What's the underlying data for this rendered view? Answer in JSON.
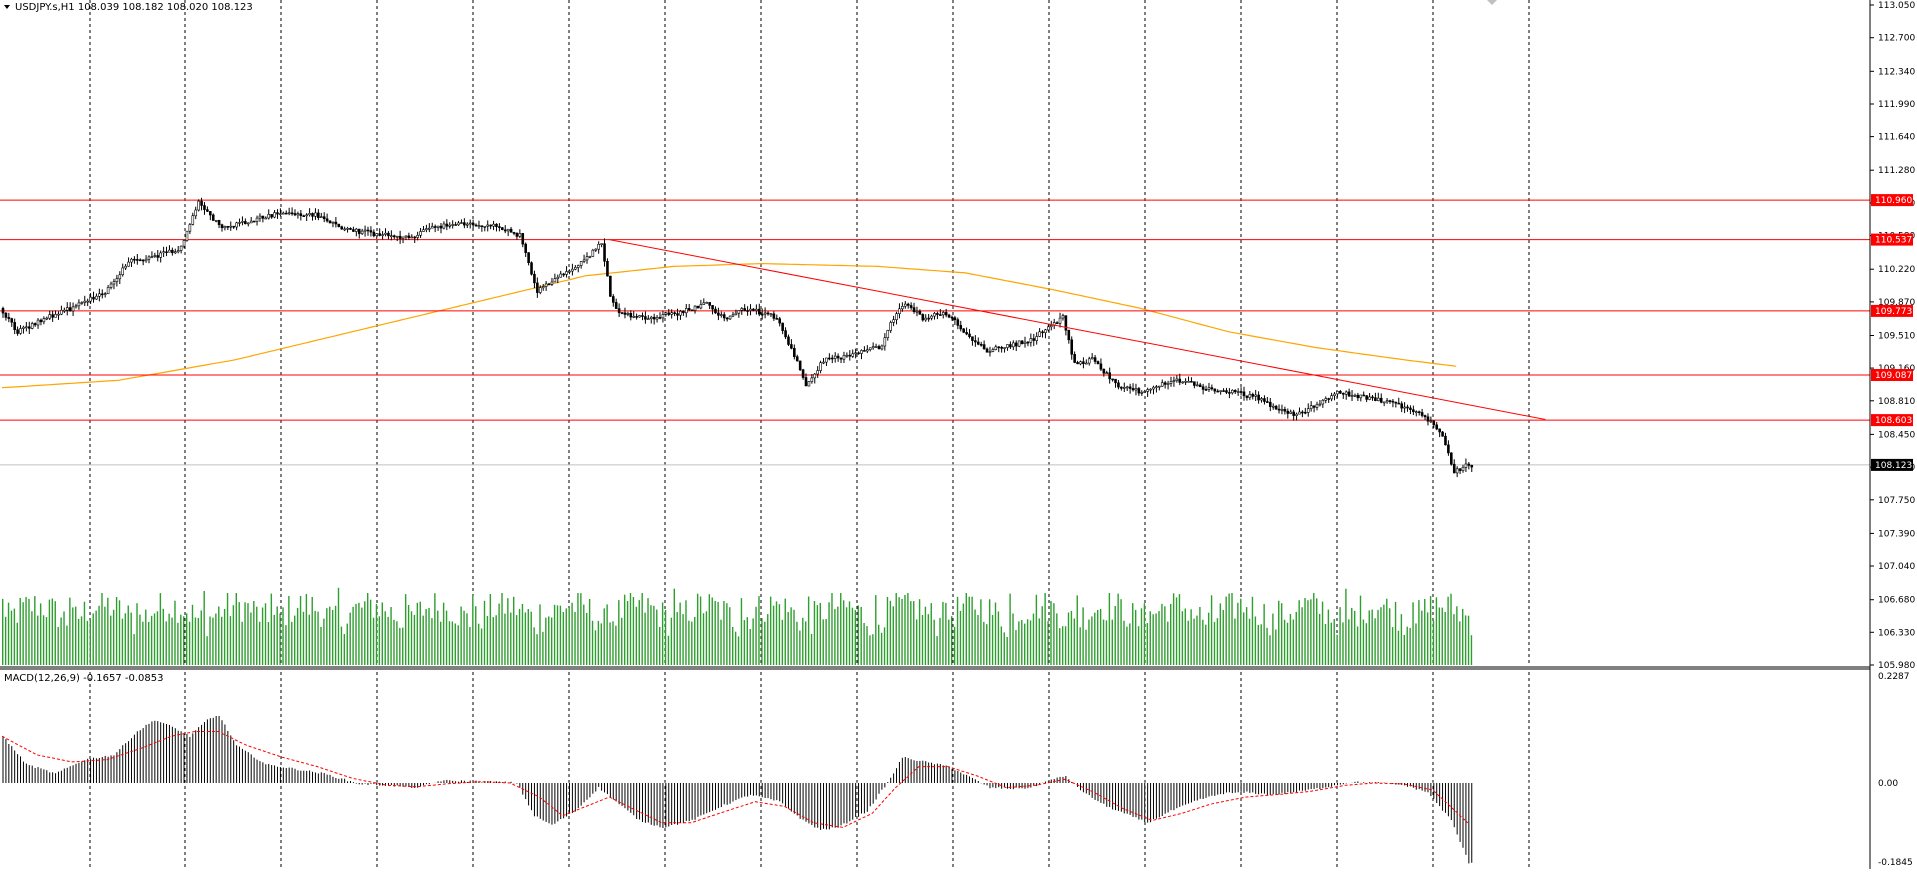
{
  "header": {
    "symbol_line": "USDJPY.s,H1  108.039 108.182 108.020 108.123",
    "macd_label": "MACD(12,26,9) -0.1657 -0.0853"
  },
  "colors": {
    "background": "#ffffff",
    "candle": "#000000",
    "volume": "#2e9e2e",
    "macd_hist": "#000000",
    "macd_signal": "#ff0000",
    "ma": "#ffa500",
    "sr_line": "#ff0000",
    "trendline": "#ff0000",
    "current_price_line": "#c0c0c0",
    "price_badge_bg": "#ff0000",
    "current_badge_bg": "#000000",
    "grid": "#000000",
    "separator": "#808080"
  },
  "chart_data": {
    "type": "candlestick",
    "symbol": "USDJPY.s",
    "timeframe": "H1",
    "ohlc_last": {
      "open": 108.039,
      "high": 108.182,
      "low": 108.02,
      "close": 108.123
    },
    "grid": true,
    "price_axis": {
      "ylim": [
        105.98,
        113.05
      ],
      "ticks": [
        "113.050",
        "112.700",
        "112.340",
        "111.990",
        "111.640",
        "111.280",
        "110.930",
        "110.580",
        "110.220",
        "109.870",
        "109.510",
        "109.160",
        "108.810",
        "108.450",
        "108.100",
        "107.750",
        "107.390",
        "107.040",
        "106.680",
        "106.330",
        "105.980"
      ]
    },
    "horizontal_levels": [
      {
        "price": 110.96,
        "label": "110.960"
      },
      {
        "price": 110.537,
        "label": "110.537"
      },
      {
        "price": 109.773,
        "label": "109.773"
      },
      {
        "price": 109.087,
        "label": "109.087"
      },
      {
        "price": 108.603,
        "label": "108.603"
      }
    ],
    "current_price": {
      "price": 108.123,
      "label": "108.123"
    },
    "trendline": {
      "from_bar": 208,
      "from_price": 110.537,
      "to_bar": 508,
      "to_price": 108.65
    },
    "price_anchors": [
      [
        0,
        109.8
      ],
      [
        6,
        109.55
      ],
      [
        16,
        109.7
      ],
      [
        26,
        109.82
      ],
      [
        36,
        109.98
      ],
      [
        44,
        110.3
      ],
      [
        52,
        110.35
      ],
      [
        62,
        110.45
      ],
      [
        68,
        110.95
      ],
      [
        76,
        110.65
      ],
      [
        86,
        110.75
      ],
      [
        96,
        110.82
      ],
      [
        108,
        110.8
      ],
      [
        118,
        110.65
      ],
      [
        128,
        110.6
      ],
      [
        140,
        110.55
      ],
      [
        148,
        110.68
      ],
      [
        160,
        110.7
      ],
      [
        170,
        110.68
      ],
      [
        178,
        110.58
      ],
      [
        184,
        109.98
      ],
      [
        192,
        110.15
      ],
      [
        200,
        110.3
      ],
      [
        206,
        110.5
      ],
      [
        209,
        109.95
      ],
      [
        212,
        109.75
      ],
      [
        222,
        109.7
      ],
      [
        232,
        109.75
      ],
      [
        242,
        109.85
      ],
      [
        248,
        109.7
      ],
      [
        256,
        109.8
      ],
      [
        266,
        109.7
      ],
      [
        272,
        109.3
      ],
      [
        276,
        108.95
      ],
      [
        282,
        109.25
      ],
      [
        292,
        109.3
      ],
      [
        302,
        109.4
      ],
      [
        306,
        109.7
      ],
      [
        310,
        109.85
      ],
      [
        316,
        109.7
      ],
      [
        324,
        109.75
      ],
      [
        332,
        109.5
      ],
      [
        338,
        109.35
      ],
      [
        346,
        109.4
      ],
      [
        354,
        109.48
      ],
      [
        360,
        109.62
      ],
      [
        364,
        109.7
      ],
      [
        368,
        109.2
      ],
      [
        374,
        109.25
      ],
      [
        384,
        108.95
      ],
      [
        392,
        108.9
      ],
      [
        402,
        109.05
      ],
      [
        412,
        108.95
      ],
      [
        422,
        108.9
      ],
      [
        430,
        108.85
      ],
      [
        436,
        108.75
      ],
      [
        444,
        108.65
      ],
      [
        452,
        108.8
      ],
      [
        458,
        108.9
      ],
      [
        466,
        108.85
      ],
      [
        476,
        108.8
      ],
      [
        484,
        108.7
      ],
      [
        490,
        108.6
      ],
      [
        494,
        108.45
      ],
      [
        498,
        108.05
      ],
      [
        502,
        108.12
      ]
    ],
    "moving_average": {
      "color": "orange",
      "anchors": [
        [
          0,
          108.95
        ],
        [
          40,
          109.03
        ],
        [
          80,
          109.25
        ],
        [
          120,
          109.55
        ],
        [
          160,
          109.85
        ],
        [
          200,
          110.15
        ],
        [
          230,
          110.25
        ],
        [
          260,
          110.28
        ],
        [
          300,
          110.25
        ],
        [
          330,
          110.18
        ],
        [
          360,
          110.0
        ],
        [
          390,
          109.8
        ],
        [
          420,
          109.55
        ],
        [
          450,
          109.38
        ],
        [
          480,
          109.25
        ],
        [
          498,
          109.18
        ]
      ]
    },
    "volume_amplitude": {
      "max": 1.0
    },
    "macd": {
      "ylim": [
        -0.1845,
        0.2287
      ],
      "ticks": [
        "0.2287",
        "0.00",
        "-0.1845"
      ],
      "histogram_anchors": [
        [
          0,
          0.1
        ],
        [
          8,
          0.04
        ],
        [
          18,
          0.02
        ],
        [
          28,
          0.05
        ],
        [
          38,
          0.06
        ],
        [
          46,
          0.11
        ],
        [
          52,
          0.135
        ],
        [
          58,
          0.12
        ],
        [
          64,
          0.1
        ],
        [
          70,
          0.135
        ],
        [
          74,
          0.145
        ],
        [
          80,
          0.08
        ],
        [
          90,
          0.04
        ],
        [
          100,
          0.03
        ],
        [
          110,
          0.02
        ],
        [
          122,
          -0.002
        ],
        [
          132,
          -0.005
        ],
        [
          142,
          -0.01
        ],
        [
          150,
          0.005
        ],
        [
          160,
          0.004
        ],
        [
          170,
          0.002
        ],
        [
          176,
          0.0
        ],
        [
          182,
          -0.07
        ],
        [
          188,
          -0.09
        ],
        [
          196,
          -0.06
        ],
        [
          204,
          -0.01
        ],
        [
          210,
          -0.04
        ],
        [
          218,
          -0.08
        ],
        [
          226,
          -0.095
        ],
        [
          236,
          -0.08
        ],
        [
          246,
          -0.05
        ],
        [
          256,
          -0.025
        ],
        [
          266,
          -0.04
        ],
        [
          274,
          -0.08
        ],
        [
          280,
          -0.1
        ],
        [
          286,
          -0.095
        ],
        [
          296,
          -0.06
        ],
        [
          304,
          0.01
        ],
        [
          308,
          0.055
        ],
        [
          316,
          0.045
        ],
        [
          324,
          0.035
        ],
        [
          332,
          0.01
        ],
        [
          338,
          -0.01
        ],
        [
          346,
          -0.012
        ],
        [
          352,
          -0.01
        ],
        [
          358,
          0.005
        ],
        [
          364,
          0.015
        ],
        [
          370,
          -0.02
        ],
        [
          378,
          -0.05
        ],
        [
          386,
          -0.07
        ],
        [
          392,
          -0.085
        ],
        [
          400,
          -0.06
        ],
        [
          410,
          -0.035
        ],
        [
          418,
          -0.022
        ],
        [
          426,
          -0.02
        ],
        [
          434,
          -0.025
        ],
        [
          442,
          -0.02
        ],
        [
          452,
          -0.01
        ],
        [
          462,
          0.002
        ],
        [
          472,
          0.0
        ],
        [
          480,
          -0.005
        ],
        [
          488,
          -0.02
        ],
        [
          496,
          -0.08
        ],
        [
          502,
          -0.17
        ]
      ],
      "signal_anchors": [
        [
          0,
          0.1
        ],
        [
          12,
          0.06
        ],
        [
          24,
          0.045
        ],
        [
          36,
          0.05
        ],
        [
          48,
          0.075
        ],
        [
          58,
          0.1
        ],
        [
          66,
          0.11
        ],
        [
          74,
          0.11
        ],
        [
          84,
          0.08
        ],
        [
          96,
          0.055
        ],
        [
          108,
          0.035
        ],
        [
          120,
          0.01
        ],
        [
          132,
          -0.005
        ],
        [
          142,
          -0.008
        ],
        [
          152,
          -0.002
        ],
        [
          164,
          0.003
        ],
        [
          174,
          0.0
        ],
        [
          184,
          -0.03
        ],
        [
          192,
          -0.07
        ],
        [
          200,
          -0.05
        ],
        [
          208,
          -0.03
        ],
        [
          216,
          -0.055
        ],
        [
          226,
          -0.085
        ],
        [
          236,
          -0.085
        ],
        [
          248,
          -0.06
        ],
        [
          258,
          -0.04
        ],
        [
          268,
          -0.05
        ],
        [
          278,
          -0.085
        ],
        [
          288,
          -0.095
        ],
        [
          298,
          -0.065
        ],
        [
          306,
          -0.01
        ],
        [
          314,
          0.035
        ],
        [
          324,
          0.035
        ],
        [
          334,
          0.015
        ],
        [
          344,
          -0.01
        ],
        [
          354,
          -0.005
        ],
        [
          364,
          0.008
        ],
        [
          374,
          -0.02
        ],
        [
          384,
          -0.055
        ],
        [
          394,
          -0.08
        ],
        [
          404,
          -0.065
        ],
        [
          414,
          -0.045
        ],
        [
          426,
          -0.03
        ],
        [
          436,
          -0.025
        ],
        [
          448,
          -0.018
        ],
        [
          460,
          -0.005
        ],
        [
          470,
          0.0
        ],
        [
          480,
          -0.002
        ],
        [
          490,
          -0.015
        ],
        [
          502,
          -0.085
        ]
      ]
    }
  }
}
